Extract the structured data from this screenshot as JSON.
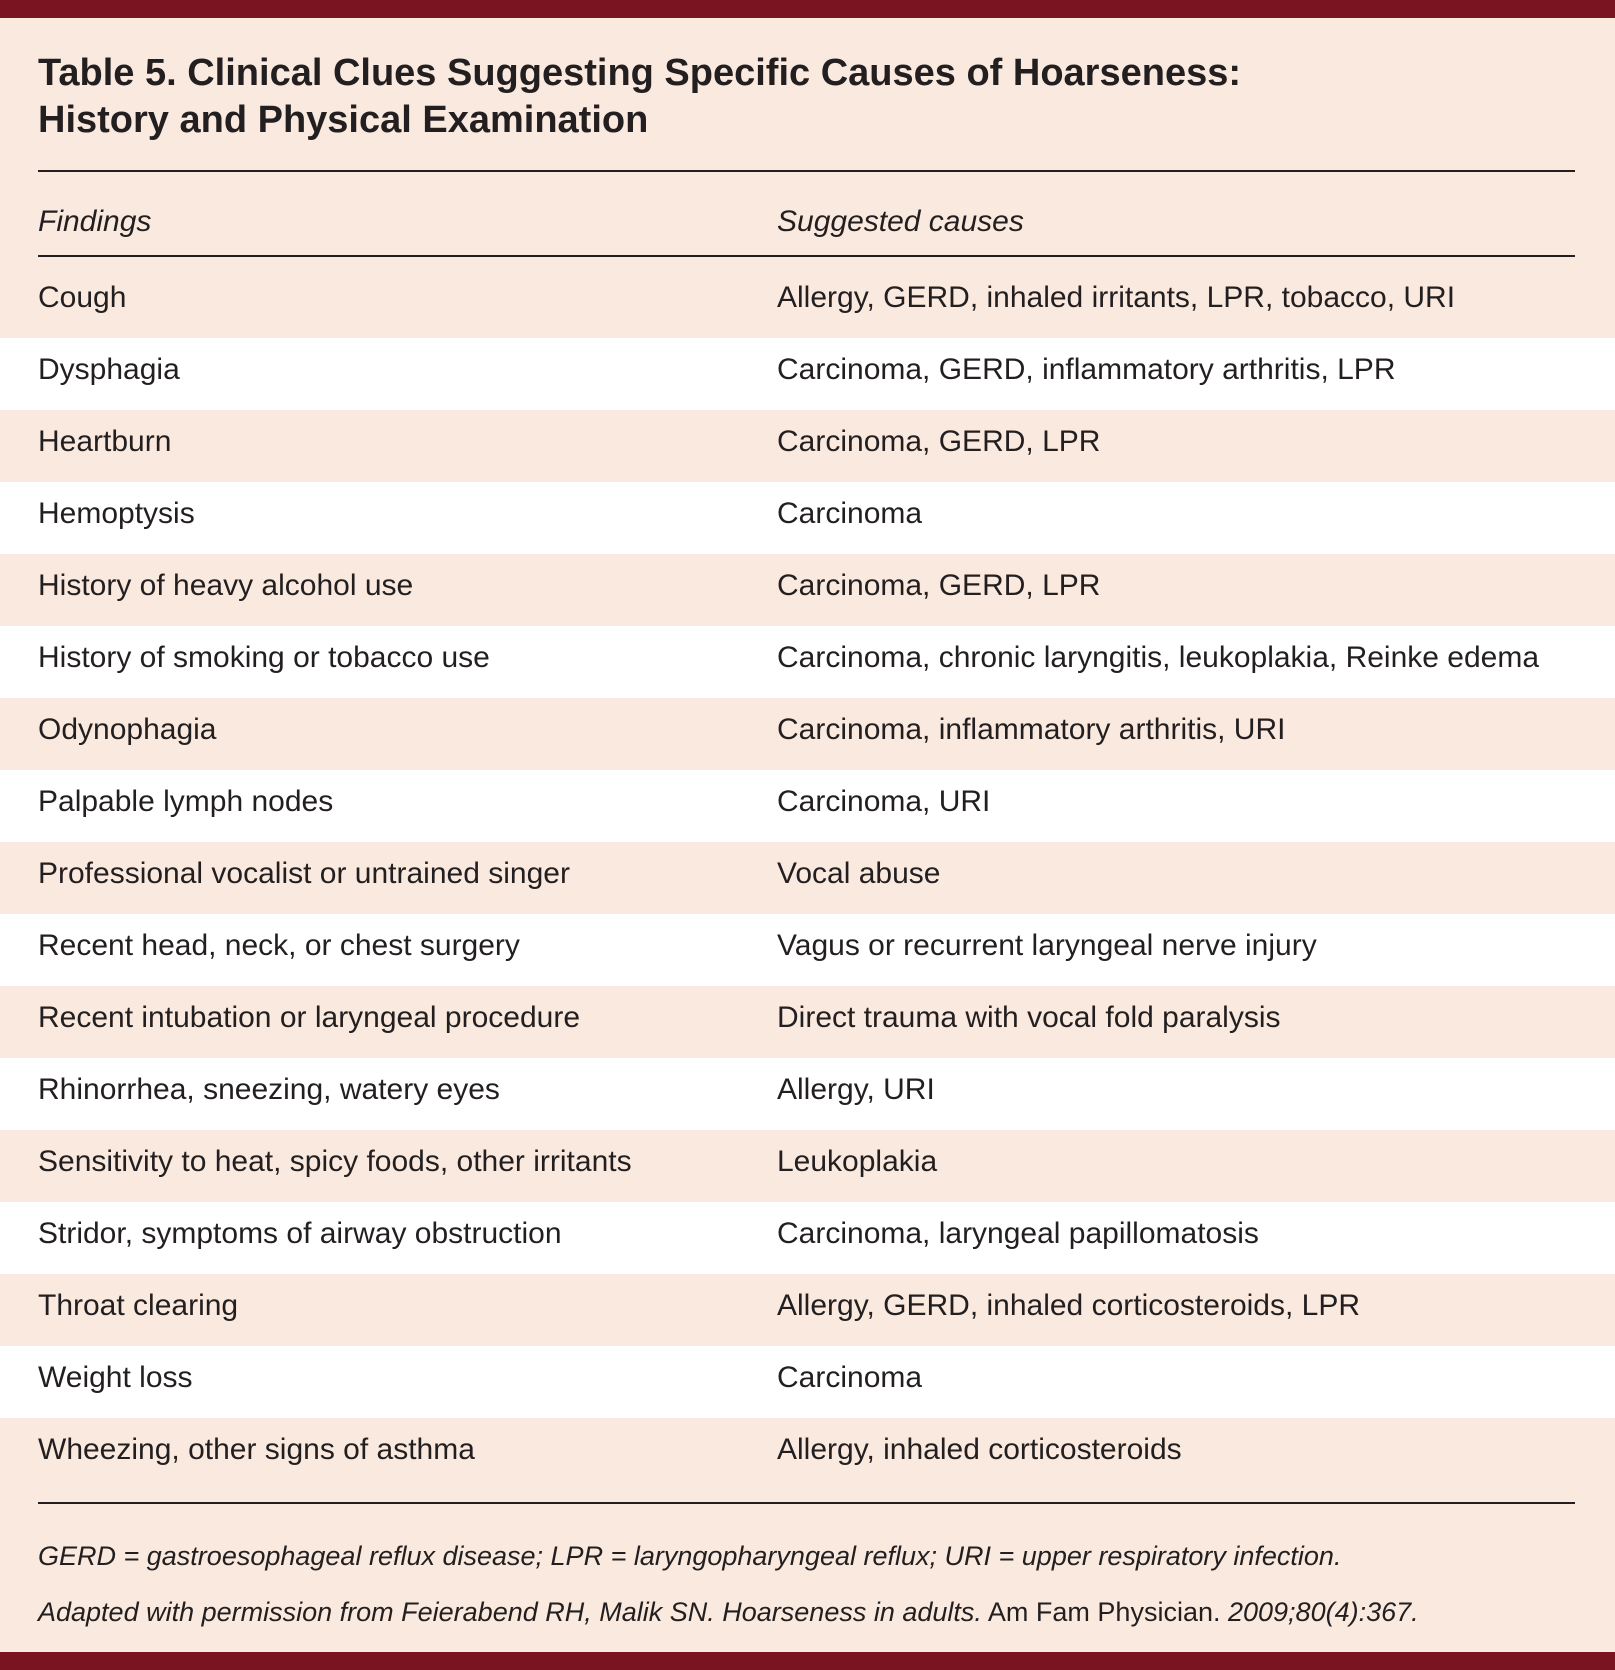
{
  "title": {
    "line1": "Table 5. Clinical Clues Suggesting Specific Causes of Hoarseness:",
    "line2": "History and Physical Examination"
  },
  "columns": {
    "findings": "Findings",
    "causes": "Suggested causes"
  },
  "rows": [
    {
      "finding": "Cough",
      "causes": "Allergy, GERD, inhaled irritants, LPR, tobacco, URI"
    },
    {
      "finding": "Dysphagia",
      "causes": "Carcinoma, GERD, inflammatory arthritis, LPR"
    },
    {
      "finding": "Heartburn",
      "causes": "Carcinoma, GERD, LPR"
    },
    {
      "finding": "Hemoptysis",
      "causes": "Carcinoma"
    },
    {
      "finding": "History of heavy alcohol use",
      "causes": "Carcinoma, GERD, LPR"
    },
    {
      "finding": "History of smoking or tobacco use",
      "causes": "Carcinoma, chronic laryngitis, leukoplakia, Reinke edema"
    },
    {
      "finding": "Odynophagia",
      "causes": "Carcinoma, inflammatory arthritis, URI"
    },
    {
      "finding": "Palpable lymph nodes",
      "causes": "Carcinoma, URI"
    },
    {
      "finding": "Professional vocalist or untrained singer",
      "causes": "Vocal abuse"
    },
    {
      "finding": "Recent head, neck, or chest surgery",
      "causes": "Vagus or recurrent laryngeal nerve injury"
    },
    {
      "finding": "Recent intubation or laryngeal procedure",
      "causes": "Direct trauma with vocal fold paralysis"
    },
    {
      "finding": "Rhinorrhea, sneezing, watery eyes",
      "causes": "Allergy, URI"
    },
    {
      "finding": "Sensitivity to heat, spicy foods, other irritants",
      "causes": "Leukoplakia"
    },
    {
      "finding": "Stridor, symptoms of airway obstruction",
      "causes": "Carcinoma, laryngeal papillomatosis"
    },
    {
      "finding": "Throat clearing",
      "causes": "Allergy, GERD, inhaled corticosteroids, LPR"
    },
    {
      "finding": "Weight loss",
      "causes": "Carcinoma"
    },
    {
      "finding": "Wheezing, other signs of asthma",
      "causes": "Allergy, inhaled corticosteroids"
    }
  ],
  "footnote": {
    "abbreviations": "GERD = gastroesophageal reflux disease; LPR = laryngopharyngeal reflux; URI = upper respiratory infection.",
    "source_pre": "Adapted with permission from Feierabend RH, Malik SN. Hoarseness in adults.",
    "source_journal": " Am Fam Physician. ",
    "source_post": "2009;80(4):367."
  },
  "colors": {
    "accent_bar": "#7a1420",
    "shaded_row": "#f9e9de",
    "plain_row": "#ffffff"
  }
}
